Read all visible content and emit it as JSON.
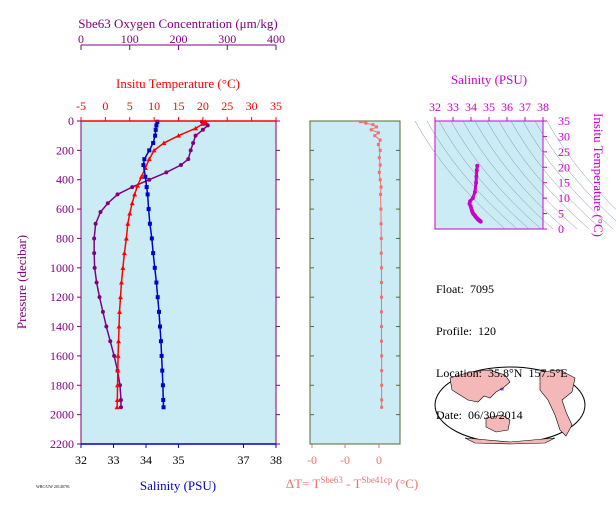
{
  "colors": {
    "plot_bg": "#ccecf5",
    "oxygen": "#800080",
    "temperature": "#ff0000",
    "salinity": "#0000cc",
    "delta_t": "#f07070",
    "pressure_axis": "#800080",
    "salinity_inset": "#cc00cc",
    "land": "#f4b8b8"
  },
  "chart_data": [
    {
      "type": "line",
      "name": "profile",
      "title": "",
      "ylabel": "Pressure (decibar)",
      "ylim": [
        2200,
        0
      ],
      "yticks": [
        "0",
        "200",
        "400",
        "600",
        "800",
        "1000",
        "1200",
        "1400",
        "1600",
        "1800",
        "2000",
        "2200"
      ],
      "oxygen_axis": {
        "label": "Sbe63 Oxygen Concentration (μm/kg)",
        "range": [
          0,
          400
        ],
        "ticks": [
          "0",
          "100",
          "200",
          "300",
          "400"
        ]
      },
      "temperature_axis": {
        "label": "Insitu Temperature (°C)",
        "range": [
          -5,
          35
        ],
        "ticks": [
          "-5",
          "0",
          "5",
          "10",
          "15",
          "20",
          "25",
          "30",
          "35"
        ]
      },
      "salinity_axis": {
        "label": "Salinity (PSU)",
        "range": [
          32,
          38
        ],
        "ticks": [
          "32",
          "33",
          "34",
          "35",
          "37",
          "38"
        ]
      },
      "series": [
        {
          "key": "oxygen",
          "points": [
            [
              248,
              5
            ],
            [
              255,
              15
            ],
            [
              260,
              30
            ],
            [
              250,
              60
            ],
            [
              235,
              100
            ],
            [
              230,
              150
            ],
            [
              225,
              200
            ],
            [
              220,
              260
            ],
            [
              205,
              300
            ],
            [
              175,
              350
            ],
            [
              140,
              400
            ],
            [
              105,
              450
            ],
            [
              75,
              500
            ],
            [
              55,
              560
            ],
            [
              40,
              620
            ],
            [
              30,
              700
            ],
            [
              27,
              800
            ],
            [
              27,
              900
            ],
            [
              28,
              1000
            ],
            [
              32,
              1100
            ],
            [
              38,
              1200
            ],
            [
              45,
              1300
            ],
            [
              52,
              1400
            ],
            [
              60,
              1500
            ],
            [
              68,
              1600
            ],
            [
              75,
              1700
            ],
            [
              80,
              1800
            ],
            [
              82,
              1900
            ],
            [
              82,
              1950
            ]
          ]
        },
        {
          "key": "temperature",
          "points": [
            [
              20.5,
              5
            ],
            [
              20,
              20
            ],
            [
              18.5,
              50
            ],
            [
              15,
              100
            ],
            [
              12,
              150
            ],
            [
              10,
              200
            ],
            [
              9,
              260
            ],
            [
              8.2,
              320
            ],
            [
              7.4,
              380
            ],
            [
              6.6,
              440
            ],
            [
              6,
              500
            ],
            [
              5.5,
              560
            ],
            [
              5,
              630
            ],
            [
              4.6,
              700
            ],
            [
              4.3,
              800
            ],
            [
              3.9,
              900
            ],
            [
              3.6,
              1000
            ],
            [
              3.3,
              1100
            ],
            [
              3.1,
              1200
            ],
            [
              2.9,
              1300
            ],
            [
              2.8,
              1400
            ],
            [
              2.7,
              1500
            ],
            [
              2.6,
              1600
            ],
            [
              2.55,
              1700
            ],
            [
              2.5,
              1800
            ],
            [
              2.45,
              1900
            ],
            [
              2.4,
              1950
            ]
          ]
        },
        {
          "key": "salinity",
          "points": [
            [
              34.35,
              5
            ],
            [
              34.32,
              30
            ],
            [
              34.3,
              60
            ],
            [
              34.28,
              100
            ],
            [
              34.22,
              150
            ],
            [
              34.1,
              200
            ],
            [
              33.95,
              260
            ],
            [
              33.92,
              300
            ],
            [
              33.98,
              380
            ],
            [
              34.02,
              450
            ],
            [
              34.05,
              500
            ],
            [
              34.08,
              600
            ],
            [
              34.12,
              700
            ],
            [
              34.18,
              800
            ],
            [
              34.22,
              900
            ],
            [
              34.27,
              1000
            ],
            [
              34.32,
              1100
            ],
            [
              34.36,
              1200
            ],
            [
              34.4,
              1300
            ],
            [
              34.43,
              1400
            ],
            [
              34.46,
              1500
            ],
            [
              34.48,
              1600
            ],
            [
              34.5,
              1700
            ],
            [
              34.52,
              1800
            ],
            [
              34.53,
              1900
            ],
            [
              34.54,
              1950
            ]
          ]
        }
      ]
    },
    {
      "type": "line",
      "name": "delta_t",
      "xlabel_main": "ΔT= T",
      "xlabel_sup1": "Sbe63",
      "xlabel_mid": " - T",
      "xlabel_sup2": "Sbe41cp",
      "xlabel_unit": " (°C)",
      "xticks": [
        "-0",
        "-0",
        "0"
      ],
      "xlim": [
        -0.4,
        0.1
      ],
      "ylim": [
        2200,
        0
      ],
      "points": [
        [
          -0.12,
          5
        ],
        [
          -0.09,
          15
        ],
        [
          -0.05,
          25
        ],
        [
          -0.03,
          40
        ],
        [
          -0.06,
          60
        ],
        [
          -0.02,
          80
        ],
        [
          -0.04,
          100
        ],
        [
          -0.01,
          130
        ],
        [
          -0.02,
          160
        ],
        [
          -0.01,
          200
        ],
        [
          -0.015,
          250
        ],
        [
          -0.01,
          300
        ],
        [
          -0.015,
          350
        ],
        [
          -0.01,
          400
        ],
        [
          -0.005,
          450
        ],
        [
          -0.008,
          500
        ],
        [
          -0.006,
          600
        ],
        [
          -0.005,
          700
        ],
        [
          -0.004,
          800
        ],
        [
          -0.004,
          900
        ],
        [
          -0.003,
          1000
        ],
        [
          -0.003,
          1100
        ],
        [
          -0.003,
          1200
        ],
        [
          -0.003,
          1300
        ],
        [
          -0.003,
          1400
        ],
        [
          -0.003,
          1500
        ],
        [
          -0.002,
          1600
        ],
        [
          -0.002,
          1700
        ],
        [
          -0.002,
          1800
        ],
        [
          -0.002,
          1900
        ],
        [
          -0.002,
          1950
        ]
      ]
    },
    {
      "type": "scatter",
      "name": "ts_inset",
      "xlabel": "Salinity (PSU)",
      "ylabel": "Insitu Temperature (°C)",
      "xlim": [
        32,
        38
      ],
      "ylim": [
        0,
        35
      ],
      "xticks": [
        "32",
        "33",
        "34",
        "35",
        "36",
        "37",
        "38"
      ],
      "yticks": [
        "0",
        "5",
        "10",
        "15",
        "20",
        "25",
        "30",
        "35"
      ],
      "points": [
        [
          34.35,
          20.5
        ],
        [
          34.32,
          19
        ],
        [
          34.3,
          17
        ],
        [
          34.28,
          15
        ],
        [
          34.22,
          12
        ],
        [
          34.1,
          10
        ],
        [
          33.95,
          9
        ],
        [
          33.92,
          8.2
        ],
        [
          33.98,
          7.4
        ],
        [
          34.02,
          6.6
        ],
        [
          34.05,
          6
        ],
        [
          34.08,
          5.5
        ],
        [
          34.12,
          5
        ],
        [
          34.18,
          4.6
        ],
        [
          34.22,
          4.3
        ],
        [
          34.27,
          3.9
        ],
        [
          34.32,
          3.6
        ],
        [
          34.36,
          3.3
        ],
        [
          34.4,
          3.1
        ],
        [
          34.43,
          2.9
        ],
        [
          34.46,
          2.8
        ],
        [
          34.48,
          2.7
        ],
        [
          34.5,
          2.6
        ],
        [
          34.52,
          2.5
        ],
        [
          34.54,
          2.4
        ]
      ]
    }
  ],
  "info": {
    "float": "Float:  7095",
    "profile": "Profile:  120",
    "location": "Location:  35.8°N  157.5°E",
    "date": "Date:  06/30/2014"
  },
  "footer_small": "WRC/UW  20140701"
}
